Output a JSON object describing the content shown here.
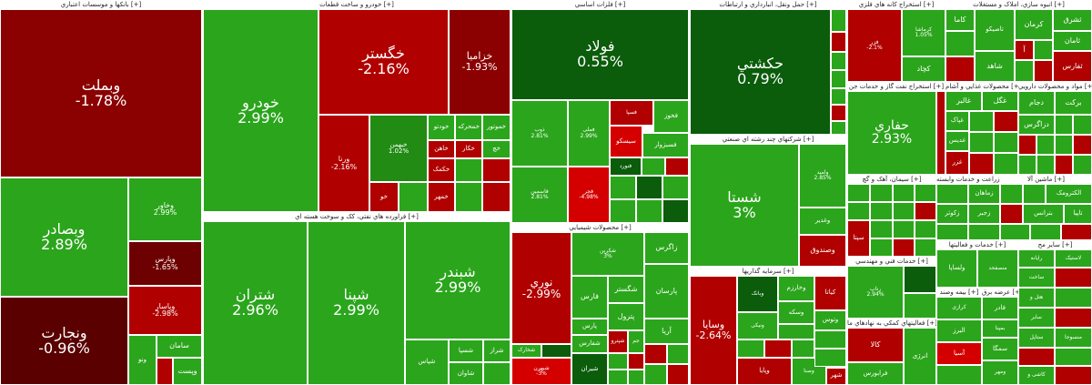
{
  "colors": {
    "dark_red": "#6d0000",
    "red": "#b00000",
    "bright_red": "#d40000",
    "dark_green": "#0b5c0b",
    "green": "#2ba51c",
    "light_green": "#33b526"
  },
  "sectors": {
    "banks": {
      "title": "بانکها و موسسات اعتباري [+]",
      "tiles": [
        {
          "name": "وبملت",
          "pct": "-1.78%"
        },
        {
          "name": "وبصادر",
          "pct": "2.89%"
        },
        {
          "name": "ونجارت",
          "pct": "-0.96%"
        },
        {
          "name": "وخاور",
          "pct": "2.99%"
        },
        {
          "name": "وپارس",
          "pct": "-1.65%"
        },
        {
          "name": "وپاسار",
          "pct": "-2.98%"
        },
        {
          "name": "سامان",
          "pct": ""
        },
        {
          "name": "وپست",
          "pct": ""
        },
        {
          "name": "ونو",
          "pct": ""
        }
      ]
    },
    "auto": {
      "title": "خودرو و ساخت قطعات [+]",
      "tiles": [
        {
          "name": "خودرو",
          "pct": "2.99%"
        },
        {
          "name": "خگستر",
          "pct": "-2.16%"
        },
        {
          "name": "خزامیا",
          "pct": "-1.93%"
        },
        {
          "name": "ورنا",
          "pct": "-2.16%"
        },
        {
          "name": "خبهمن",
          "pct": "1.02%"
        },
        {
          "name": "خودتو",
          "pct": ""
        },
        {
          "name": "خمحرکه",
          "pct": ""
        },
        {
          "name": "خموتور",
          "pct": ""
        },
        {
          "name": "خاهن",
          "pct": ""
        },
        {
          "name": "خکار",
          "pct": ""
        },
        {
          "name": "خکمک",
          "pct": ""
        },
        {
          "name": "خمهر",
          "pct": ""
        },
        {
          "name": "خو",
          "pct": ""
        },
        {
          "name": "خچ",
          "pct": ""
        }
      ]
    },
    "oil": {
      "title": "فراورده هاي نفتي، کک و سوخت هسته اي [+]",
      "tiles": [
        {
          "name": "شتران",
          "pct": "2.96%"
        },
        {
          "name": "شپنا",
          "pct": "2.99%"
        },
        {
          "name": "شبندر",
          "pct": "2.99%"
        },
        {
          "name": "شسپا",
          "pct": ""
        },
        {
          "name": "شراز",
          "pct": ""
        },
        {
          "name": "شاوان",
          "pct": ""
        },
        {
          "name": "شپاس",
          "pct": ""
        }
      ]
    },
    "metals": {
      "title": "فلزات اساسي [+]",
      "tiles": [
        {
          "name": "فولاد",
          "pct": "0.55%"
        },
        {
          "name": "ذوب",
          "pct": "2.81%"
        },
        {
          "name": "فملی",
          "pct": "2.99%"
        },
        {
          "name": "فخوز",
          "pct": ""
        },
        {
          "name": "فسپا",
          "pct": ""
        },
        {
          "name": "فاسمین",
          "pct": "2.81%"
        },
        {
          "name": "فسبزوار",
          "pct": ""
        },
        {
          "name": "سیسکو",
          "pct": ""
        },
        {
          "name": "فنورد",
          "pct": ""
        },
        {
          "name": "فجر",
          "pct": "-4.98%"
        }
      ]
    },
    "transport": {
      "title": "حمل ونقل، انبارداري و ارتباطات [+]",
      "tiles": [
        {
          "name": "حکشتي",
          "pct": "0.79%"
        }
      ]
    },
    "mining": {
      "title": "استخراج کانه هاي فلزي [+]",
      "tiles": [
        {
          "name": "فزر",
          "pct": "-2.1%"
        },
        {
          "name": "کچاد",
          "pct": ""
        },
        {
          "name": "کگل",
          "pct": ""
        },
        {
          "name": "کرماشا",
          "pct": "1.05%"
        }
      ]
    },
    "housing": {
      "title": "انبوه سازي، املاک و مستغلات [+]",
      "tiles": [
        {
          "name": "کاما",
          "pct": ""
        },
        {
          "name": "کرمان",
          "pct": ""
        },
        {
          "name": "ثشرق",
          "pct": ""
        },
        {
          "name": "شاهد",
          "pct": ""
        },
        {
          "name": "تاصیکو",
          "pct": ""
        },
        {
          "name": "ثامان",
          "pct": ""
        },
        {
          "name": "آ",
          "pct": ""
        },
        {
          "name": "ثفارس",
          "pct": ""
        }
      ]
    },
    "oilgas": {
      "title": "استخراج نفت گاز و خدمات جن [+]",
      "tiles": [
        {
          "name": "حفاري",
          "pct": "2.93%"
        }
      ]
    },
    "food": {
      "title": "محصولات غذايي و آشام [+]",
      "tiles": [
        {
          "name": "غالبر",
          "pct": ""
        },
        {
          "name": "غگل",
          "pct": ""
        },
        {
          "name": "غپاک",
          "pct": ""
        },
        {
          "name": "غدیس",
          "pct": ""
        },
        {
          "name": "غزر",
          "pct": ""
        }
      ]
    },
    "pharma": {
      "title": "مواد و محصولات دارويي [+]",
      "tiles": [
        {
          "name": "دجام",
          "pct": ""
        },
        {
          "name": "برکت",
          "pct": ""
        },
        {
          "name": "دزاگرس",
          "pct": ""
        }
      ]
    },
    "chem": {
      "title": "محصولات شيميايي [+]",
      "tiles": [
        {
          "name": "نوري",
          "pct": "-2.99%"
        },
        {
          "name": "زاگرس",
          "pct": ""
        },
        {
          "name": "شکربن",
          "pct": "3%"
        },
        {
          "name": "پارسان",
          "pct": ""
        },
        {
          "name": "فارس",
          "pct": ""
        },
        {
          "name": "شگستر",
          "pct": ""
        },
        {
          "name": "پترول",
          "pct": ""
        },
        {
          "name": "آریا",
          "pct": ""
        },
        {
          "name": "پارس",
          "pct": ""
        },
        {
          "name": "شفارس",
          "pct": ""
        },
        {
          "name": "شیران",
          "pct": ""
        },
        {
          "name": "شپترو",
          "pct": ""
        },
        {
          "name": "جم",
          "pct": ""
        },
        {
          "name": "شخارک",
          "pct": ""
        },
        {
          "name": "شبهرن",
          "pct": "-3%"
        }
      ]
    },
    "multi": {
      "title": "شرکتهاي چند رشته اي صنعتي [+]",
      "tiles": [
        {
          "name": "شستا",
          "pct": "3%"
        },
        {
          "name": "وصندوق",
          "pct": ""
        },
        {
          "name": "وامید",
          "pct": "2.85%"
        },
        {
          "name": "وغدیر",
          "pct": ""
        }
      ]
    },
    "invest": {
      "title": "سرمايه گذاريها [+]",
      "tiles": [
        {
          "name": "وسايا",
          "pct": "-2.64%"
        },
        {
          "name": "وخارزم",
          "pct": ""
        },
        {
          "name": "کیاتا",
          "pct": ""
        },
        {
          "name": "وسکه",
          "pct": ""
        },
        {
          "name": "وبانک",
          "pct": ""
        },
        {
          "name": "وتوس",
          "pct": ""
        },
        {
          "name": "ونیکی",
          "pct": ""
        },
        {
          "name": "وپایا",
          "pct": ""
        },
        {
          "name": "شهر",
          "pct": ""
        },
        {
          "name": "وصنا",
          "pct": ""
        }
      ]
    },
    "cement": {
      "title": "سيمان، آهک و گچ [+]",
      "tiles": [
        {
          "name": "سپتا",
          "pct": ""
        }
      ]
    },
    "agri": {
      "title": "زراعت و خدمات وابسته [+]",
      "tiles": [
        {
          "name": "زماهان",
          "pct": ""
        },
        {
          "name": "زکوثر",
          "pct": ""
        },
        {
          "name": "زجبر",
          "pct": ""
        }
      ]
    },
    "machinery": {
      "title": "ماشين آلا [+]",
      "tiles": [
        {
          "name": "الکترومک",
          "pct": ""
        },
        {
          "name": "بترانس",
          "pct": ""
        },
        {
          "name": "تاپیا",
          "pct": ""
        }
      ]
    },
    "engineering": {
      "title": "خدمات فني و مهندسي [+]",
      "tiles": [
        {
          "name": "رتاپ",
          "pct": "2.94%"
        }
      ]
    },
    "finance_aux": {
      "title": "فعاليتهاي کمکي به نهادهاي ما [+]",
      "tiles": [
        {
          "name": "کالا",
          "pct": ""
        },
        {
          "name": "فرابورس",
          "pct": ""
        },
        {
          "name": "انرژی",
          "pct": ""
        }
      ]
    },
    "misc_a": {
      "title": "خدمات و فعالیتها [+]",
      "tiles": [
        {
          "name": "ولساپا",
          "pct": ""
        },
        {
          "name": "منصفحد",
          "pct": ""
        }
      ]
    },
    "misc_b": {
      "title": "بيمه وصند [+]",
      "tiles": [
        {
          "name": "البرز",
          "pct": ""
        },
        {
          "name": "آسیا",
          "pct": ""
        },
        {
          "name": "کرازی",
          "pct": ""
        }
      ]
    },
    "misc_c": {
      "title": "عرضه برق [+]",
      "tiles": [
        {
          "name": "فادر",
          "pct": ""
        },
        {
          "name": "بمپنا",
          "pct": ""
        },
        {
          "name": "سمگا",
          "pct": ""
        },
        {
          "name": "ومهر",
          "pct": ""
        }
      ]
    },
    "misc_d": {
      "title": "ساير مح [+]",
      "tiles": [
        {
          "name": "سابر",
          "pct": ""
        },
        {
          "name": "ستاپل",
          "pct": ""
        },
        {
          "name": "منسوجا",
          "pct": ""
        },
        {
          "name": "کاشی و",
          "pct": ""
        },
        {
          "name": "لاستيک",
          "pct": ""
        },
        {
          "name": "رايانه",
          "pct": ""
        },
        {
          "name": "هتل و",
          "pct": ""
        },
        {
          "name": "ساخت",
          "pct": ""
        }
      ]
    }
  }
}
